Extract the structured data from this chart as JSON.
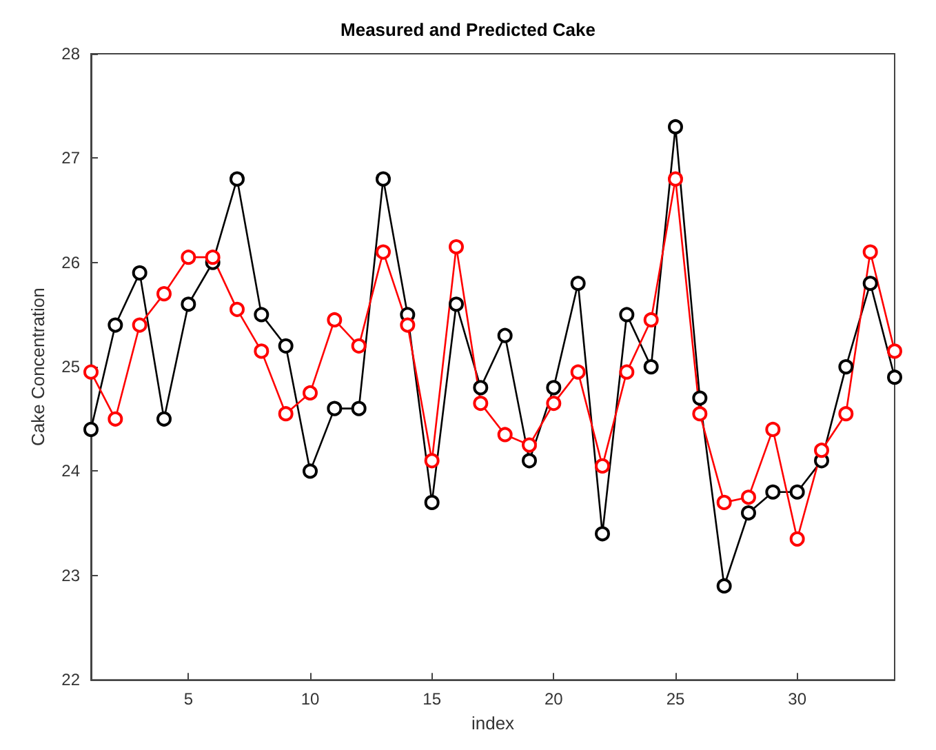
{
  "chart_data": {
    "type": "line",
    "title": "Measured and Predicted Cake",
    "xlabel": "index",
    "ylabel": "Cake Concentration",
    "x": [
      1,
      2,
      3,
      4,
      5,
      6,
      7,
      8,
      9,
      10,
      11,
      12,
      13,
      14,
      15,
      16,
      17,
      18,
      19,
      20,
      21,
      22,
      23,
      24,
      25,
      26,
      27,
      28,
      29,
      30,
      31,
      32,
      33,
      34
    ],
    "series": [
      {
        "color": "#000000",
        "values": [
          24.4,
          25.4,
          25.9,
          24.5,
          25.6,
          26.0,
          26.8,
          25.5,
          25.2,
          24.0,
          24.6,
          24.6,
          26.8,
          25.5,
          23.7,
          25.6,
          24.8,
          25.3,
          24.1,
          24.8,
          25.8,
          23.4,
          25.5,
          25.0,
          27.3,
          24.7,
          22.9,
          23.6,
          23.8,
          23.8,
          24.1,
          25.0,
          25.8,
          24.9
        ]
      },
      {
        "color": "#ff0000",
        "values": [
          24.95,
          24.5,
          25.4,
          25.7,
          26.05,
          26.05,
          25.55,
          25.15,
          24.55,
          24.75,
          25.45,
          25.2,
          26.1,
          25.4,
          24.1,
          26.15,
          24.65,
          24.35,
          24.25,
          24.65,
          24.95,
          24.05,
          24.95,
          25.45,
          26.8,
          24.55,
          23.7,
          23.75,
          24.4,
          23.35,
          24.2,
          24.55,
          26.1,
          25.15
        ]
      }
    ],
    "xlim": [
      1,
      34
    ],
    "xticks": [
      5,
      10,
      15,
      20,
      25,
      30
    ],
    "ylim": [
      22,
      28
    ],
    "yticks": [
      22,
      23,
      24,
      25,
      26,
      27,
      28
    ],
    "marker": "circle",
    "line_style": "solid"
  }
}
